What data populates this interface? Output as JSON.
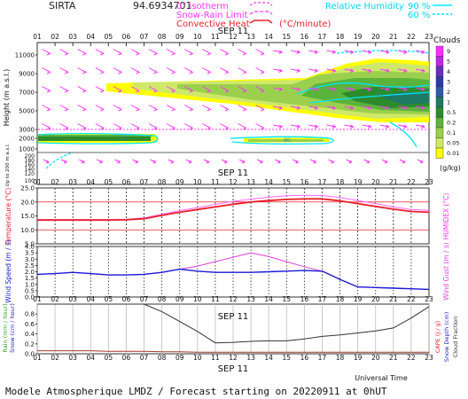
{
  "header": {
    "station": "SIRTA",
    "coords": "94.6934701",
    "leg_isotherm": "0° isotherm",
    "leg_snow_rain": "Snow-Rain Limit",
    "leg_conv_heat": "Convective Heat",
    "leg_conv_unit": "(°C/minute)",
    "leg_rh": "Relative Humidity",
    "leg_rh_90": "90 %",
    "leg_rh_60": "60 %",
    "date_label": "SEP 11",
    "clouds_title": "Clouds",
    "clouds_unit": "(g/kg)"
  },
  "footer": {
    "universal_time": "Universal Time",
    "forecast": "Modele Atmospherique LMDZ / Forecast starting on 20220911 at 0hUT"
  },
  "colors": {
    "clouds": [
      "#ffff00",
      "#cfe86a",
      "#9ad04d",
      "#5ab33b",
      "#2c8c2c",
      "#1e7a62",
      "#2f5aa8",
      "#2e3ba0",
      "#6a2fb8",
      "#b92ae0",
      "#ff2bff"
    ],
    "wind_arrow": "#ff33ff",
    "rh_line": "#00e5ff",
    "temp": "#e8202a",
    "humidex": "#ff66ff",
    "wind_speed": "#1a1ad6",
    "wind_gust": "#e040e0",
    "rain": "#a63a2a",
    "cape": "#333333"
  },
  "chart_data": [
    {
      "type": "area",
      "panel": "vertical cross-section",
      "ylabel": "Height (m a.s.l.)",
      "ylabel_lower": "Up to 200 m a.s.l.",
      "x_ticks": [
        "01",
        "02",
        "03",
        "04",
        "05",
        "06",
        "07",
        "08",
        "09",
        "10",
        "11",
        "12",
        "13",
        "14",
        "15",
        "16",
        "17",
        "18",
        "19",
        "20",
        "21",
        "22",
        "23"
      ],
      "y_ticks": [
        "11000",
        "9000",
        "7000",
        "5000",
        "3000",
        "2000",
        "1000"
      ],
      "y_ticks_lower": [
        "200",
        "180",
        "160",
        "140",
        "120",
        "100"
      ],
      "cloud_scale": [
        "9",
        "5",
        "4",
        "3",
        "2",
        "1",
        "0.5",
        "0.2",
        "0.1",
        "0.05",
        "0.01"
      ],
      "contour_label": "90"
    },
    {
      "type": "line",
      "panel": "temperature",
      "ylabel": "Temperature (°C)",
      "ylabel_right": "HUMIDEX (°C)",
      "y_ticks": [
        "25.0",
        "20.0",
        "15.0",
        "10.0",
        "5.0"
      ],
      "ylim": [
        5,
        25
      ],
      "x": [
        1,
        2,
        3,
        4,
        5,
        6,
        7,
        8,
        9,
        10,
        11,
        12,
        13,
        14,
        15,
        16,
        17,
        18,
        19,
        20,
        21,
        22,
        23
      ],
      "series": [
        {
          "name": "Temperature",
          "values": [
            13.5,
            13.5,
            13.5,
            13.5,
            13.5,
            13.6,
            14.0,
            15.2,
            16.3,
            17.3,
            18.2,
            19.2,
            20.0,
            20.5,
            20.9,
            21.1,
            21.1,
            20.4,
            19.4,
            18.4,
            17.4,
            16.6,
            16.3
          ]
        },
        {
          "name": "HUMIDEX",
          "values": [
            13.7,
            13.7,
            13.7,
            13.7,
            13.7,
            13.8,
            14.3,
            15.6,
            16.9,
            18.0,
            19.1,
            20.2,
            21.0,
            21.7,
            22.2,
            22.4,
            22.3,
            21.6,
            20.5,
            19.4,
            18.2,
            17.3,
            17.0
          ]
        }
      ]
    },
    {
      "type": "line",
      "panel": "wind",
      "ylabel": "Wind Speed (m / s)",
      "ylabel_right": "Wind Gust (m / s)",
      "y_ticks": [
        "4.0",
        "3.5",
        "3.0",
        "2.5",
        "2.0",
        "1.5",
        "1.0",
        "0.5",
        "0.0"
      ],
      "ylim": [
        0,
        4
      ],
      "x": [
        1,
        2,
        3,
        4,
        5,
        6,
        7,
        8,
        9,
        10,
        11,
        12,
        13,
        14,
        15,
        16,
        17,
        18,
        19,
        20,
        21,
        22,
        23
      ],
      "series": [
        {
          "name": "Wind Speed",
          "values": [
            1.8,
            1.85,
            1.95,
            1.85,
            1.75,
            1.75,
            1.8,
            1.95,
            2.2,
            2.05,
            1.95,
            1.95,
            1.95,
            2.0,
            2.05,
            2.1,
            2.05,
            1.4,
            0.8,
            0.75,
            0.7,
            0.65,
            0.6
          ]
        },
        {
          "name": "Wind Gust",
          "values": [
            1.8,
            1.85,
            1.95,
            1.85,
            1.75,
            1.75,
            1.8,
            1.95,
            2.2,
            2.45,
            2.8,
            3.15,
            3.5,
            3.2,
            2.8,
            2.4,
            2.05,
            1.4,
            0.8,
            0.75,
            0.7,
            0.65,
            0.6
          ]
        }
      ]
    },
    {
      "type": "line",
      "panel": "precipitation",
      "ylabel": "Rain (mm / hour)",
      "ylabel_2": "Snow (cm / hour)",
      "ylabel_right": "CAPE (J / g)",
      "ylabel_right_2": "Snow Depth (cm)",
      "ylabel_right_3": "Cloud Fraction",
      "y_ticks": [
        "0.8",
        "0.6",
        "0.4",
        "0.2",
        "0.0"
      ],
      "ylim": [
        0,
        1
      ],
      "x": [
        1,
        2,
        3,
        4,
        5,
        6,
        7,
        8,
        9,
        10,
        11,
        12,
        13,
        14,
        15,
        16,
        17,
        18,
        19,
        20,
        21,
        22,
        23
      ],
      "series": [
        {
          "name": "Cloud Fraction",
          "values": [
            1.0,
            1.0,
            1.0,
            1.0,
            1.0,
            1.0,
            1.0,
            0.85,
            0.65,
            0.45,
            0.22,
            0.23,
            0.25,
            0.26,
            0.26,
            0.3,
            0.35,
            0.38,
            0.42,
            0.46,
            0.52,
            0.72,
            0.95
          ]
        },
        {
          "name": "Rain",
          "values": [
            0.06,
            0.06,
            0.06,
            0.06,
            0.05,
            0.05,
            0.05,
            0.04,
            0.04,
            0.03,
            0.03,
            0.03,
            0.03,
            0.03,
            0.03,
            0.03,
            0.03,
            0.03,
            0.03,
            0.03,
            0.03,
            0.03,
            0.03
          ]
        }
      ]
    }
  ]
}
